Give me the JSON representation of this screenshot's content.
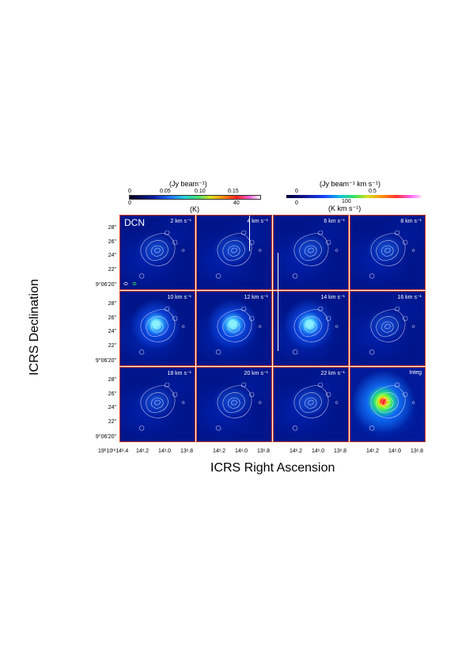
{
  "colorbar_channel": {
    "title": "(Jy beam⁻¹)",
    "unit_below": "(K)",
    "ticks_top": [
      "0",
      "0.05",
      "0.10",
      "0.15"
    ],
    "ticks_bottom": [
      "0",
      "40"
    ]
  },
  "colorbar_integ": {
    "title": "(Jy beam⁻¹ km s⁻¹)",
    "unit_below": "(K  km s⁻¹)",
    "ticks_top": [
      "0",
      "0.5"
    ],
    "ticks_bottom": [
      "0",
      "100"
    ]
  },
  "molecule": "DCN",
  "panels": [
    {
      "label": "2 km s⁻¹"
    },
    {
      "label": "4 km s⁻¹"
    },
    {
      "label": "6 km s⁻¹"
    },
    {
      "label": "8 km s⁻¹"
    },
    {
      "label": "10 km s⁻¹"
    },
    {
      "label": "12 km s⁻¹"
    },
    {
      "label": "14 km s⁻¹"
    },
    {
      "label": "16 km s⁻¹"
    },
    {
      "label": "18 km s⁻¹"
    },
    {
      "label": "20 km s⁻¹"
    },
    {
      "label": "22 km s⁻¹"
    },
    {
      "label": "Integ"
    }
  ],
  "y_ticks": [
    "28\"",
    "26\"",
    "24\"",
    "22\"",
    "9°06'20\""
  ],
  "x_ticks_first": "19ʰ10ᵐ14ˢ.4",
  "x_ticks": [
    "14ˢ.2",
    "14ˢ.0",
    "13ˢ.8"
  ],
  "y_axis_label": "ICRS Declination",
  "x_axis_label": "ICRS Right Ascension",
  "colors": {
    "frame": "#d23a1c",
    "background_map": "#00158a"
  }
}
